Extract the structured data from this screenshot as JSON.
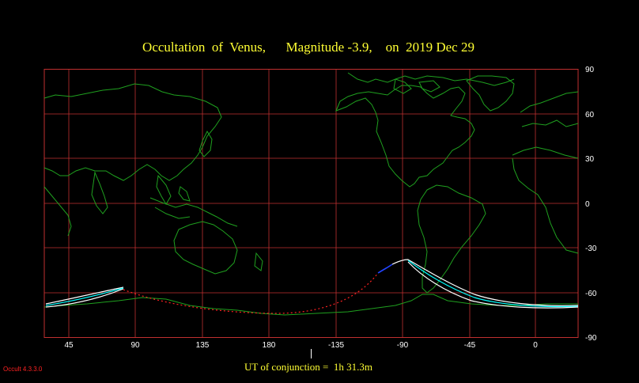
{
  "title": "Occultation  of  Venus,      Magnitude -3.9,    on  2019 Dec 29",
  "map": {
    "projection": "equirectangular",
    "lon_range": [
      25,
      -30
    ],
    "lat_range": [
      -90,
      90
    ],
    "longitude_ticks": [
      "45",
      "90",
      "135",
      "180",
      "-135",
      "-90",
      "-45",
      "0"
    ],
    "latitude_ticks": [
      "90",
      "60",
      "30",
      "0",
      "-30",
      "-60",
      "-90"
    ],
    "colors": {
      "background": "#000000",
      "grid": "#c03030",
      "coastline": "#1fa01f",
      "title": "#ffff33",
      "track_limit": "#ffffff",
      "track_center": "#00ffff",
      "daylight_track": "#2244ff",
      "night_track": "#ff2222"
    }
  },
  "conjunction": {
    "label": "UT of conjunction =  1h 31.3m"
  },
  "footer": {
    "version": "Occult 4.3.3.0"
  }
}
